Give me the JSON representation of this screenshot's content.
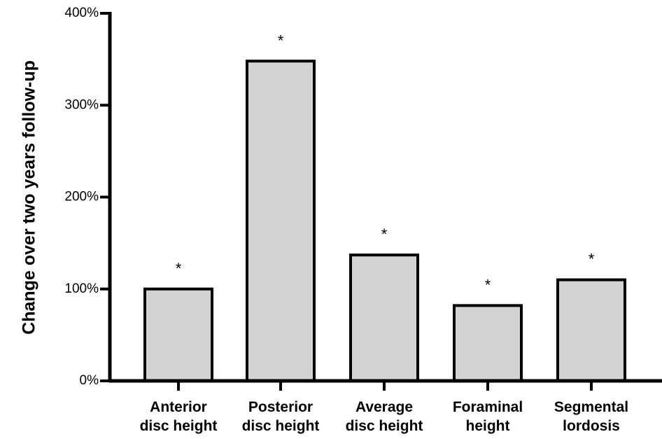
{
  "chart_data": {
    "type": "bar",
    "categories": [
      [
        "Anterior",
        "disc height"
      ],
      [
        "Posterior",
        "disc height"
      ],
      [
        "Average",
        "disc height"
      ],
      [
        "Foraminal",
        "height"
      ],
      [
        "Segmental",
        "lordosis"
      ]
    ],
    "values": [
      100,
      348,
      137,
      82,
      110
    ],
    "annotations": [
      "*",
      "*",
      "*",
      "*",
      "*"
    ],
    "ylabel": "Change over two years follow-up",
    "ylim": [
      0,
      400
    ],
    "yticks": [
      0,
      100,
      200,
      300,
      400
    ],
    "ytick_labels": [
      "0%",
      "100%",
      "200%",
      "300%",
      "400%"
    ],
    "bar_color": "#d3d3d3",
    "edge_color": "#000000",
    "grid": false
  }
}
